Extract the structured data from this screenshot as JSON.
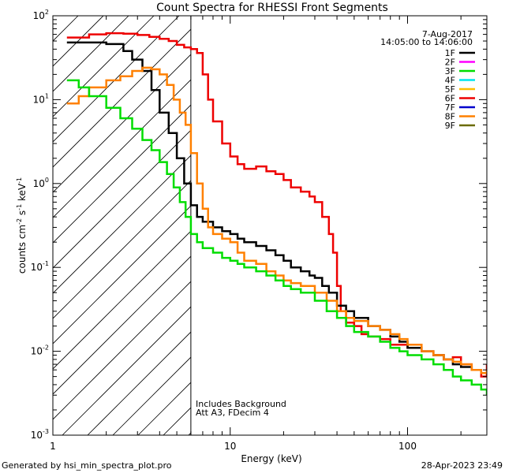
{
  "chart_data": {
    "type": "line",
    "title": "Count Spectra for RHESSI Front Segments",
    "xlabel": "Energy (keV)",
    "ylabel_parts": [
      "counts cm",
      "-2",
      " s",
      "-1",
      " keV",
      "-1"
    ],
    "xscale": "log",
    "yscale": "log",
    "xlim": [
      1.0,
      280
    ],
    "ylim": [
      0.001,
      100
    ],
    "x_ticks": [
      {
        "value": 1,
        "label": "1"
      },
      {
        "value": 10,
        "label": "10"
      },
      {
        "value": 100,
        "label": "100"
      }
    ],
    "y_ticks": [
      {
        "value": 0.001,
        "base": "10",
        "exp": "-3"
      },
      {
        "value": 0.01,
        "base": "10",
        "exp": "-2"
      },
      {
        "value": 0.1,
        "base": "10",
        "exp": "-1"
      },
      {
        "value": 1,
        "base": "10",
        "exp": "0"
      },
      {
        "value": 10,
        "base": "10",
        "exp": "1"
      },
      {
        "value": 100,
        "base": "10",
        "exp": "2"
      }
    ],
    "date": "7-Aug-2017",
    "time_range": "14:05:00 to 14:06:00",
    "legend": [
      {
        "label": "1F",
        "color": "#000000"
      },
      {
        "label": "2F",
        "color": "#ff00ff"
      },
      {
        "label": "3F",
        "color": "#00dd00"
      },
      {
        "label": "4F",
        "color": "#00e5ee"
      },
      {
        "label": "5F",
        "color": "#ffbf00"
      },
      {
        "label": "6F",
        "color": "#ee0000"
      },
      {
        "label": "7F",
        "color": "#0000cc"
      },
      {
        "label": "8F",
        "color": "#ff8000"
      },
      {
        "label": "9F",
        "color": "#6b6b00"
      }
    ],
    "attenuator_threshold_kev": 6.0,
    "notes": [
      "Includes Background",
      "Att A3, FDecim  4"
    ],
    "series": [
      {
        "name": "6F",
        "color": "#ee0000",
        "x": [
          1.2,
          1.6,
          2.0,
          2.5,
          3.0,
          3.5,
          4.0,
          4.5,
          5.0,
          5.5,
          6.0,
          6.5,
          7.0,
          7.5,
          8.0,
          9.0,
          10.0,
          11.0,
          12.0,
          14.0,
          16.0,
          18.0,
          20.0,
          22.0,
          25.0,
          28.0,
          30.0,
          33.0,
          36.0,
          38.0,
          40.0,
          42.0,
          45.0,
          50.0,
          55.0,
          60.0,
          70.0,
          80.0,
          90.0,
          100.0,
          120.0,
          140.0,
          160.0,
          180.0,
          200.0,
          230.0,
          260.0,
          280.0
        ],
        "y": [
          55,
          60,
          62,
          61,
          59,
          56,
          53,
          50,
          45,
          42,
          40,
          36,
          20,
          10,
          5.5,
          3.0,
          2.1,
          1.7,
          1.5,
          1.6,
          1.4,
          1.3,
          1.1,
          0.9,
          0.8,
          0.7,
          0.6,
          0.4,
          0.25,
          0.15,
          0.06,
          0.03,
          0.022,
          0.02,
          0.016,
          0.015,
          0.014,
          0.012,
          0.012,
          0.011,
          0.01,
          0.009,
          0.008,
          0.0085,
          0.007,
          0.006,
          0.005,
          0.007
        ]
      },
      {
        "name": "1F",
        "color": "#000000",
        "x": [
          1.2,
          1.5,
          2.0,
          2.5,
          2.8,
          3.2,
          3.6,
          4.0,
          4.5,
          5.0,
          5.5,
          6.0,
          6.5,
          7.0,
          8.0,
          9.0,
          10.0,
          11.0,
          12.0,
          14.0,
          16.0,
          18.0,
          20.0,
          22.0,
          25.0,
          28.0,
          30.0,
          33.0,
          36.0,
          40.0,
          45.0,
          50.0,
          60.0,
          70.0,
          80.0,
          90.0,
          100.0,
          120.0,
          140.0,
          160.0,
          180.0,
          200.0,
          230.0,
          260.0
        ],
        "y": [
          48,
          48,
          46,
          38,
          30,
          22,
          13,
          7,
          4,
          2.0,
          1.0,
          0.55,
          0.4,
          0.35,
          0.3,
          0.27,
          0.25,
          0.22,
          0.2,
          0.18,
          0.16,
          0.14,
          0.12,
          0.1,
          0.09,
          0.08,
          0.075,
          0.06,
          0.05,
          0.035,
          0.03,
          0.025,
          0.02,
          0.018,
          0.015,
          0.013,
          0.011,
          0.01,
          0.009,
          0.008,
          0.007,
          0.0065,
          0.006,
          0.006
        ]
      },
      {
        "name": "8F",
        "color": "#ff8000",
        "x": [
          1.2,
          1.4,
          1.6,
          2.0,
          2.4,
          2.8,
          3.2,
          3.6,
          4.0,
          4.4,
          4.8,
          5.2,
          5.6,
          6.0,
          6.5,
          7.0,
          7.5,
          8.0,
          9.0,
          10.0,
          11.0,
          12.0,
          14.0,
          16.0,
          18.0,
          20.0,
          22.0,
          25.0,
          30.0,
          35.0,
          40.0,
          45.0,
          50.0,
          60.0,
          70.0,
          80.0,
          90.0,
          100.0,
          120.0,
          140.0,
          160.0,
          180.0,
          200.0,
          230.0,
          260.0,
          280.0
        ],
        "y": [
          9,
          11,
          14,
          17,
          19,
          22,
          24,
          23,
          20,
          15,
          10,
          7,
          5,
          2.3,
          1.0,
          0.5,
          0.3,
          0.25,
          0.22,
          0.2,
          0.15,
          0.12,
          0.11,
          0.09,
          0.08,
          0.07,
          0.065,
          0.06,
          0.05,
          0.04,
          0.03,
          0.025,
          0.023,
          0.02,
          0.018,
          0.016,
          0.014,
          0.012,
          0.01,
          0.009,
          0.008,
          0.0075,
          0.007,
          0.006,
          0.0055,
          0.006
        ]
      },
      {
        "name": "3F",
        "color": "#00dd00",
        "x": [
          1.2,
          1.4,
          1.6,
          2.0,
          2.4,
          2.8,
          3.2,
          3.6,
          4.0,
          4.4,
          4.8,
          5.2,
          5.6,
          6.0,
          6.5,
          7.0,
          8.0,
          9.0,
          10.0,
          11.0,
          12.0,
          14.0,
          16.0,
          18.0,
          20.0,
          22.0,
          25.0,
          30.0,
          35.0,
          40.0,
          45.0,
          50.0,
          60.0,
          70.0,
          80.0,
          90.0,
          100.0,
          120.0,
          140.0,
          160.0,
          180.0,
          200.0,
          230.0,
          260.0,
          280.0
        ],
        "y": [
          17,
          14,
          11,
          8,
          6,
          4.5,
          3.3,
          2.5,
          1.8,
          1.3,
          0.9,
          0.6,
          0.4,
          0.25,
          0.2,
          0.17,
          0.15,
          0.13,
          0.12,
          0.11,
          0.1,
          0.09,
          0.08,
          0.07,
          0.06,
          0.055,
          0.05,
          0.04,
          0.03,
          0.025,
          0.02,
          0.017,
          0.015,
          0.013,
          0.011,
          0.01,
          0.009,
          0.008,
          0.007,
          0.006,
          0.005,
          0.0045,
          0.004,
          0.0035,
          0.003
        ]
      }
    ]
  },
  "footer": {
    "left": "Generated by hsi_min_spectra_plot.pro",
    "right": "28-Apr-2023 23:49"
  }
}
